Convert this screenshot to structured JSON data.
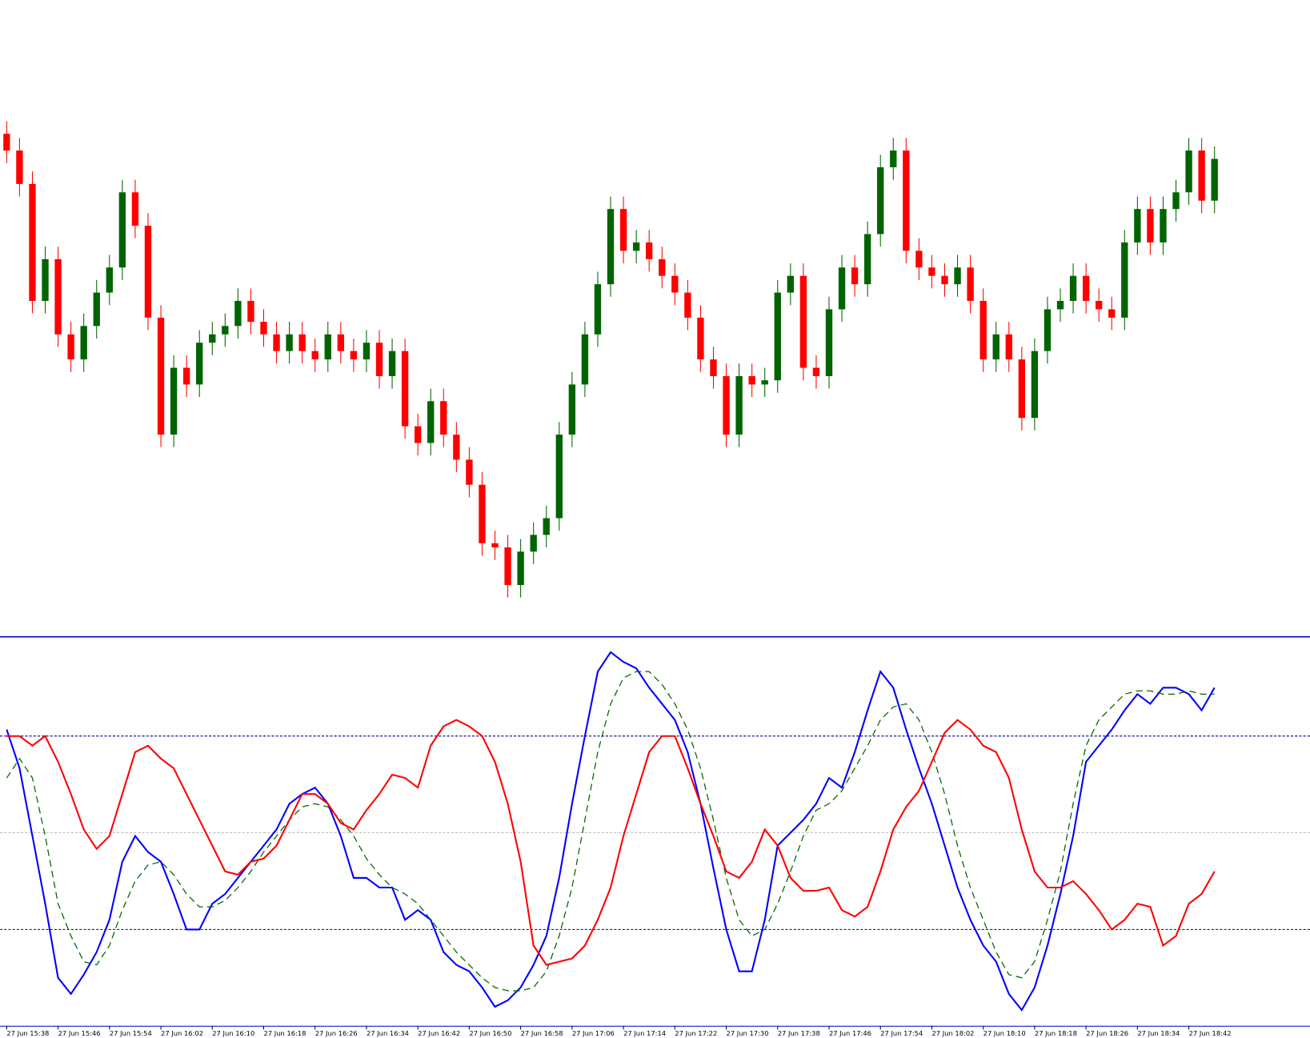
{
  "chart_data": [
    {
      "type": "candlestick",
      "categories": [
        "27 Jun 15:38",
        null,
        null,
        null,
        "27 Jun 15:46",
        null,
        null,
        null,
        "27 Jun 15:54",
        null,
        null,
        null,
        "27 Jun 16:02",
        null,
        null,
        null,
        "27 Jun 16:10",
        null,
        null,
        null,
        "27 Jun 16:18",
        null,
        null,
        null,
        "27 Jun 16:26",
        null,
        null,
        null,
        "27 Jun 16:34",
        null,
        null,
        null,
        "27 Jun 16:42",
        null,
        null,
        null,
        "27 Jun 16:50",
        null,
        null,
        null,
        "27 Jun 16:58",
        null,
        null,
        null,
        "27 Jun 17:06",
        null,
        null,
        null,
        "27 Jun 17:14",
        null,
        null,
        null,
        "27 Jun 17:22",
        null,
        null,
        null,
        "27 Jun 17:30",
        null,
        null,
        null,
        "27 Jun 17:38",
        null,
        null,
        null,
        "27 Jun 17:46",
        null,
        null,
        null,
        "27 Jun 17:54",
        null,
        null,
        null,
        "27 Jun 18:02",
        null,
        null,
        null,
        "27 Jun 18:10",
        null,
        null,
        null,
        "27 Jun 18:18",
        null,
        null,
        null,
        "27 Jun 18:26",
        null,
        null,
        null,
        "27 Jun 18:34",
        null,
        null,
        null,
        "27 Jun 18:42",
        null,
        null
      ],
      "open": [
        600,
        580,
        540,
        400,
        450,
        360,
        330,
        370,
        410,
        440,
        530,
        490,
        380,
        240,
        320,
        300,
        350,
        360,
        370,
        400,
        375,
        360,
        340,
        360,
        340,
        330,
        360,
        340,
        330,
        350,
        310,
        340,
        250,
        230,
        280,
        240,
        210,
        180,
        110,
        105,
        60,
        100,
        120,
        140,
        240,
        300,
        360,
        420,
        510,
        460,
        470,
        450,
        430,
        410,
        380,
        330,
        310,
        240,
        310,
        300,
        305,
        410,
        430,
        320,
        310,
        390,
        440,
        420,
        480,
        560,
        580,
        460,
        440,
        430,
        420,
        440,
        400,
        330,
        360,
        330,
        260,
        340,
        390,
        400,
        430,
        400,
        390,
        380,
        470,
        510,
        470,
        510,
        530,
        580,
        520
      ],
      "high": [
        615,
        595,
        555,
        465,
        465,
        375,
        385,
        425,
        455,
        545,
        545,
        505,
        395,
        335,
        335,
        365,
        375,
        385,
        415,
        415,
        390,
        375,
        375,
        375,
        355,
        375,
        375,
        355,
        365,
        365,
        355,
        355,
        265,
        295,
        295,
        255,
        225,
        195,
        125,
        120,
        115,
        135,
        155,
        255,
        315,
        375,
        435,
        525,
        525,
        485,
        485,
        465,
        445,
        425,
        395,
        345,
        325,
        325,
        325,
        320,
        425,
        445,
        445,
        335,
        405,
        455,
        455,
        495,
        575,
        595,
        595,
        475,
        455,
        445,
        455,
        455,
        415,
        375,
        375,
        345,
        355,
        405,
        415,
        445,
        445,
        415,
        405,
        485,
        525,
        525,
        525,
        545,
        595,
        595,
        585
      ],
      "low": [
        565,
        525,
        385,
        385,
        345,
        315,
        315,
        355,
        395,
        425,
        475,
        365,
        225,
        225,
        285,
        285,
        335,
        345,
        355,
        360,
        345,
        325,
        325,
        325,
        315,
        315,
        325,
        315,
        315,
        295,
        295,
        235,
        215,
        215,
        225,
        195,
        165,
        95,
        90,
        45,
        45,
        85,
        105,
        125,
        225,
        285,
        345,
        405,
        445,
        445,
        435,
        415,
        395,
        365,
        315,
        295,
        225,
        225,
        285,
        285,
        290,
        395,
        305,
        295,
        295,
        375,
        405,
        405,
        465,
        545,
        445,
        425,
        415,
        405,
        405,
        385,
        315,
        315,
        315,
        245,
        245,
        325,
        375,
        385,
        385,
        375,
        365,
        365,
        455,
        455,
        455,
        495,
        515,
        505,
        505
      ],
      "close": [
        580,
        540,
        400,
        450,
        360,
        330,
        370,
        410,
        440,
        530,
        490,
        380,
        240,
        320,
        300,
        350,
        360,
        370,
        400,
        375,
        360,
        340,
        360,
        340,
        330,
        360,
        340,
        330,
        350,
        310,
        340,
        250,
        230,
        280,
        240,
        210,
        180,
        110,
        105,
        60,
        100,
        120,
        140,
        240,
        300,
        360,
        420,
        510,
        460,
        470,
        450,
        430,
        410,
        380,
        330,
        310,
        240,
        310,
        300,
        305,
        410,
        430,
        320,
        310,
        390,
        440,
        420,
        480,
        560,
        580,
        460,
        440,
        430,
        420,
        440,
        400,
        330,
        360,
        330,
        260,
        340,
        390,
        400,
        430,
        400,
        390,
        380,
        470,
        510,
        470,
        510,
        530,
        580,
        520,
        570
      ],
      "up_color": "#006400",
      "down_color": "#ff0000",
      "ylim": [
        0,
        760
      ]
    },
    {
      "type": "line",
      "ylim": [
        -10,
        110
      ],
      "levels": [
        20,
        50,
        80
      ],
      "series": [
        {
          "color": "#0000ff",
          "dashed": false,
          "values": [
            82,
            70,
            49,
            28,
            5,
            0,
            6,
            13,
            23,
            41,
            49,
            44,
            41,
            31,
            20,
            20,
            28,
            31,
            36,
            41,
            46,
            51,
            59,
            62,
            64,
            59,
            49,
            36,
            36,
            33,
            33,
            23,
            26,
            23,
            13,
            9,
            7,
            2,
            -4,
            -2,
            2,
            9,
            18,
            36,
            59,
            80,
            100,
            106,
            103,
            101,
            95,
            90,
            85,
            75,
            59,
            39,
            20,
            7,
            7,
            23,
            46,
            50,
            54,
            59,
            67,
            64,
            75,
            88,
            100,
            95,
            82,
            70,
            59,
            46,
            33,
            23,
            15,
            10,
            0,
            -5,
            2,
            15,
            31,
            49,
            72,
            77,
            82,
            88,
            93,
            90,
            95,
            95,
            93,
            88,
            95
          ]
        },
        {
          "color": "#006400",
          "dashed": true,
          "values": [
            67,
            73,
            67,
            49,
            28,
            18,
            10,
            9,
            15,
            26,
            35,
            40,
            41,
            37,
            31,
            27,
            27,
            29,
            33,
            38,
            44,
            49,
            54,
            58,
            59,
            58,
            54,
            49,
            42,
            37,
            33,
            31,
            28,
            23,
            18,
            13,
            9,
            5,
            2,
            1,
            1,
            2,
            7,
            18,
            33,
            54,
            75,
            90,
            98,
            100,
            100,
            96,
            90,
            82,
            70,
            54,
            36,
            23,
            18,
            20,
            28,
            38,
            49,
            57,
            59,
            63,
            70,
            77,
            85,
            89,
            90,
            85,
            75,
            62,
            46,
            33,
            23,
            13,
            6,
            5,
            10,
            23,
            38,
            59,
            77,
            85,
            89,
            93,
            94,
            94,
            93,
            93,
            94,
            93,
            93
          ]
        },
        {
          "color": "#ff0000",
          "dashed": false,
          "values": [
            80,
            80,
            77,
            80,
            72,
            62,
            51,
            45,
            49,
            62,
            75,
            77,
            73,
            70,
            62,
            54,
            46,
            38,
            37,
            41,
            42,
            46,
            54,
            62,
            62,
            59,
            53,
            51,
            57,
            62,
            68,
            67,
            64,
            77,
            83,
            85,
            83,
            80,
            72,
            59,
            41,
            15,
            9,
            10,
            11,
            15,
            23,
            33,
            49,
            62,
            75,
            80,
            80,
            70,
            59,
            49,
            38,
            36,
            41,
            51,
            46,
            36,
            32,
            32,
            33,
            26,
            24,
            27,
            38,
            51,
            58,
            63,
            72,
            81,
            85,
            82,
            77,
            75,
            67,
            51,
            38,
            33,
            33,
            35,
            31,
            26,
            20,
            23,
            28,
            27,
            15,
            18,
            28,
            31,
            38
          ]
        }
      ]
    }
  ]
}
